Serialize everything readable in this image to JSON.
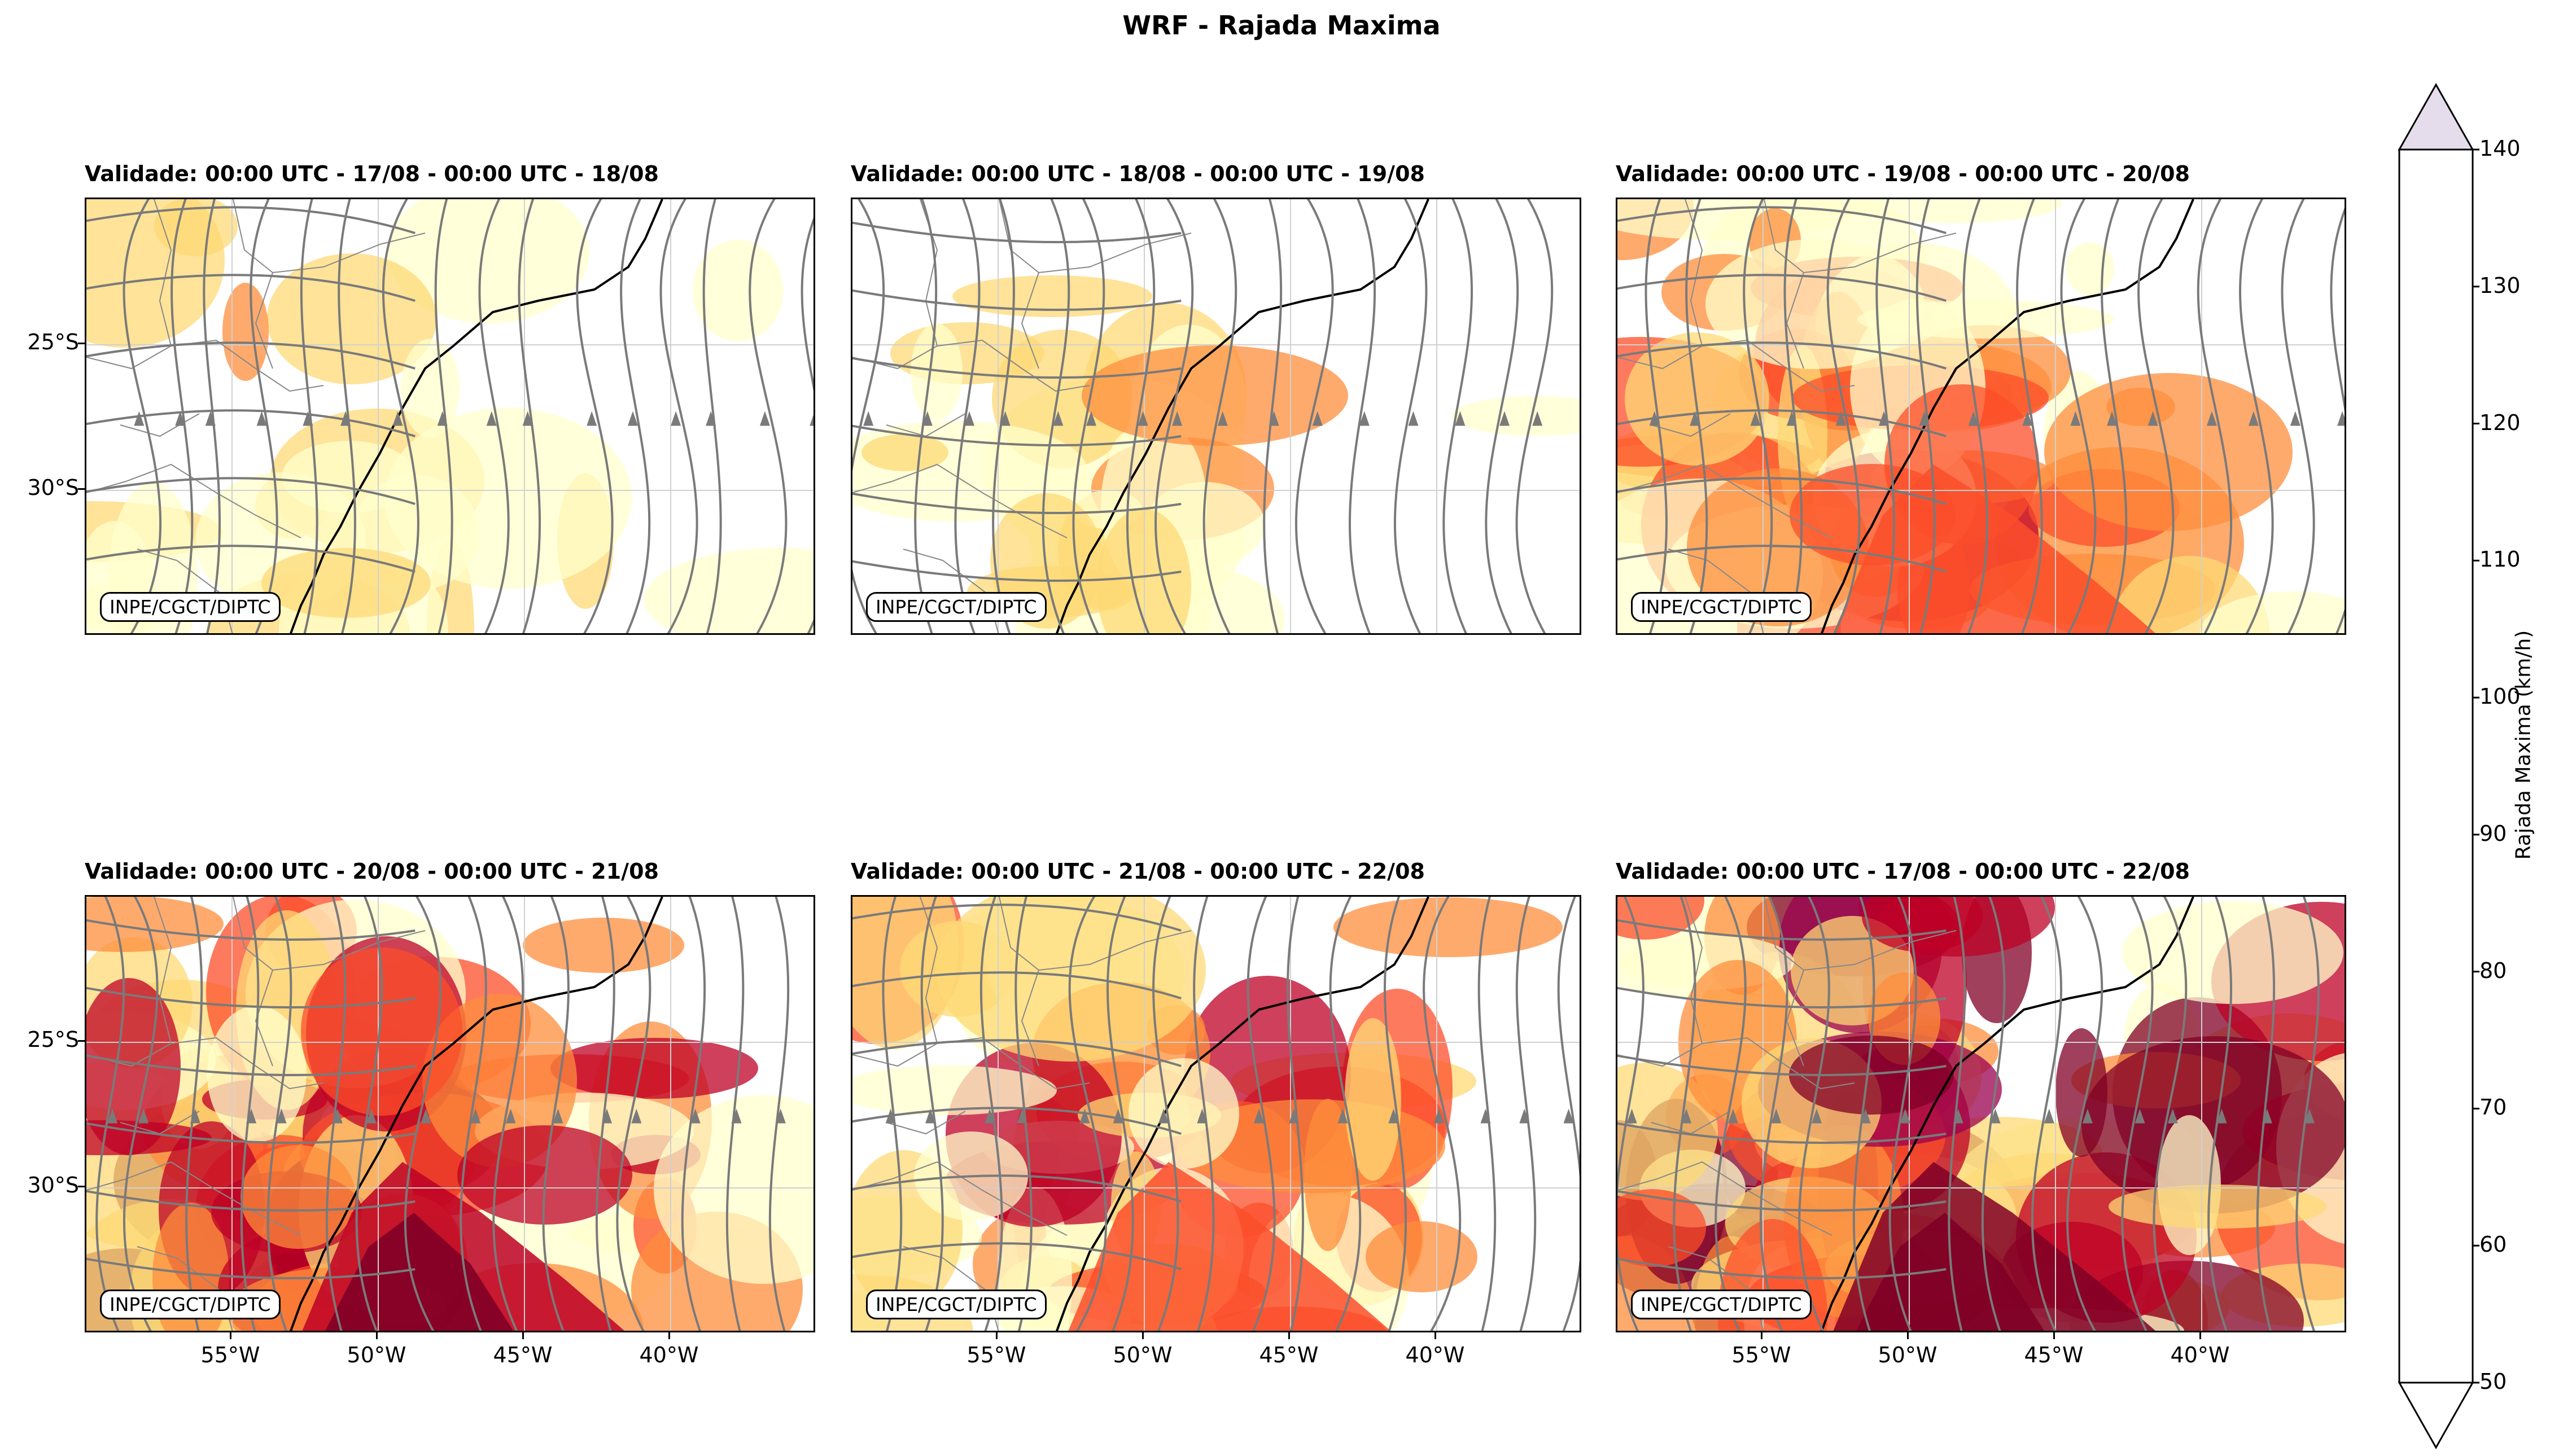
{
  "figure_title": "WRF - Rajada Maxima",
  "credit_label": "INPE/CGCT/DIPTC",
  "panels": [
    {
      "title": "Validade: 00:00 UTC - 17/08 - 00:00 UTC - 18/08",
      "intensity": 1
    },
    {
      "title": "Validade: 00:00 UTC - 18/08 - 00:00 UTC - 19/08",
      "intensity": 1
    },
    {
      "title": "Validade: 00:00 UTC - 19/08 - 00:00 UTC - 20/08",
      "intensity": 3
    },
    {
      "title": "Validade: 00:00 UTC - 20/08 - 00:00 UTC - 21/08",
      "intensity": 4
    },
    {
      "title": "Validade: 00:00 UTC - 21/08 - 00:00 UTC - 22/08",
      "intensity": 3
    },
    {
      "title": "Validade: 00:00 UTC - 17/08 - 00:00 UTC - 22/08",
      "intensity": 5
    }
  ],
  "lat_labels": [
    "25°S",
    "30°S"
  ],
  "lon_labels": [
    "55°W",
    "50°W",
    "45°W",
    "40°W"
  ],
  "colorbar": {
    "label": "Rajada Maxima (km/h)",
    "levels": [
      "50",
      "60",
      "70",
      "80",
      "90",
      "100",
      "110",
      "120",
      "130",
      "140"
    ],
    "colors": [
      "#ffffcc",
      "#fed976",
      "#fd8d3c",
      "#fc4e2a",
      "#bd0026",
      "#800026",
      "#99004d",
      "#e7298a",
      "#c994c7",
      "#e6ddec"
    ]
  },
  "colors": {
    "streamline": "#7a7a7a",
    "coast": "#000000",
    "border": "#888888"
  }
}
